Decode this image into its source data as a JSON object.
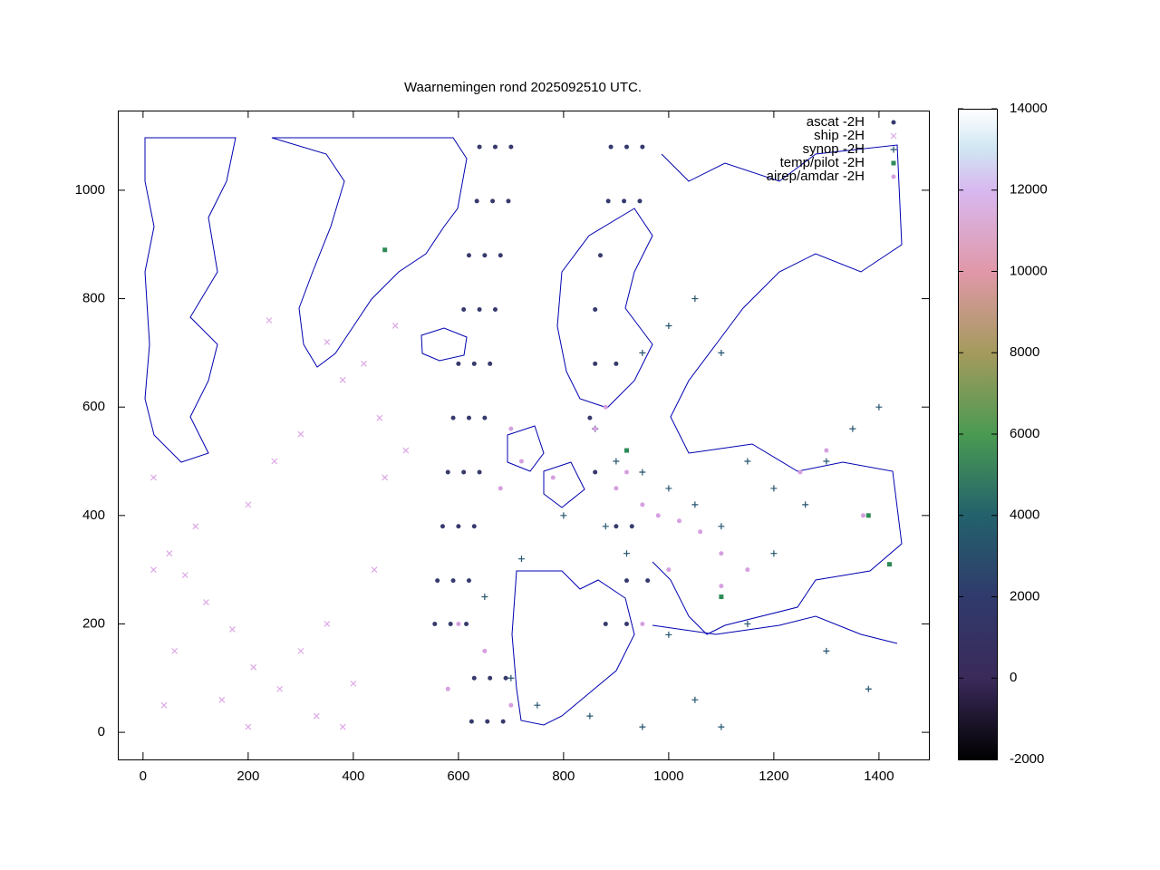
{
  "chart_data": {
    "type": "scatter",
    "title": "Waarnemingen rond 2025092510 UTC.",
    "xlim": [
      -48,
      1495
    ],
    "ylim": [
      -50,
      1147
    ],
    "xticks": [
      0,
      200,
      400,
      600,
      800,
      1000,
      1200,
      1400
    ],
    "yticks": [
      0,
      200,
      400,
      600,
      800,
      1000
    ],
    "cblim": [
      -2000,
      14000
    ],
    "cbticks": [
      -2000,
      0,
      2000,
      4000,
      6000,
      8000,
      10000,
      12000,
      14000
    ],
    "series": [
      {
        "name": "ascat -2H",
        "color": "#363a6c",
        "marker": "dot",
        "x": [
          640,
          670,
          700,
          635,
          665,
          695,
          620,
          650,
          680,
          610,
          640,
          670,
          600,
          630,
          660,
          590,
          620,
          650,
          580,
          610,
          640,
          570,
          600,
          630,
          560,
          590,
          620,
          555,
          585,
          615,
          630,
          660,
          690,
          625,
          655,
          685,
          890,
          920,
          950,
          885,
          915,
          945,
          870,
          860,
          860,
          900,
          850,
          860,
          900,
          930,
          920,
          960,
          880,
          920
        ],
        "y": [
          1080,
          1080,
          1080,
          980,
          980,
          980,
          880,
          880,
          880,
          780,
          780,
          780,
          680,
          680,
          680,
          580,
          580,
          580,
          480,
          480,
          480,
          380,
          380,
          380,
          280,
          280,
          280,
          200,
          200,
          200,
          100,
          100,
          100,
          20,
          20,
          20,
          1080,
          1080,
          1080,
          980,
          980,
          980,
          880,
          780,
          680,
          680,
          580,
          480,
          380,
          380,
          280,
          280,
          200,
          200
        ]
      },
      {
        "name": "ship -2H",
        "color": "#dca8e6",
        "marker": "cross",
        "x": [
          20,
          20,
          50,
          80,
          120,
          170,
          210,
          260,
          300,
          350,
          400,
          440,
          300,
          380,
          450,
          500,
          250,
          200,
          100,
          60,
          150,
          330,
          380,
          200,
          40,
          420,
          480,
          350,
          240,
          460
        ],
        "y": [
          470,
          300,
          330,
          290,
          240,
          190,
          120,
          80,
          150,
          200,
          90,
          300,
          550,
          650,
          580,
          520,
          500,
          420,
          380,
          150,
          60,
          30,
          10,
          10,
          50,
          680,
          750,
          720,
          760,
          470
        ]
      },
      {
        "name": "synop -2H",
        "color": "#24546e",
        "marker": "plus",
        "x": [
          860,
          900,
          950,
          1000,
          1050,
          1100,
          1150,
          1200,
          1260,
          1300,
          1350,
          1400,
          950,
          1000,
          1050,
          1100,
          880,
          920,
          700,
          750,
          850,
          950,
          1050,
          1100,
          1000,
          1150,
          1300,
          1380,
          650,
          720,
          800,
          1200
        ],
        "y": [
          560,
          500,
          480,
          450,
          420,
          380,
          500,
          450,
          420,
          500,
          560,
          600,
          700,
          750,
          800,
          700,
          380,
          330,
          100,
          50,
          30,
          10,
          60,
          10,
          180,
          200,
          150,
          80,
          250,
          320,
          400,
          330
        ]
      },
      {
        "name": "temp/pilot -2H",
        "color": "#2e8b57",
        "marker": "square",
        "x": [
          460,
          1420,
          1380,
          920,
          1100
        ],
        "y": [
          890,
          310,
          400,
          520,
          250
        ]
      },
      {
        "name": "airep/amdar -2H",
        "color": "#d6a0e0",
        "marker": "dot",
        "x": [
          900,
          920,
          950,
          980,
          1020,
          1060,
          1100,
          1150,
          780,
          720,
          700,
          680,
          600,
          650,
          700,
          580,
          860,
          880,
          1250,
          1300,
          1370,
          1100,
          1000,
          950
        ],
        "y": [
          450,
          480,
          420,
          400,
          390,
          370,
          330,
          300,
          470,
          500,
          560,
          450,
          200,
          150,
          50,
          80,
          560,
          600,
          480,
          520,
          400,
          270,
          300,
          200
        ]
      }
    ]
  }
}
